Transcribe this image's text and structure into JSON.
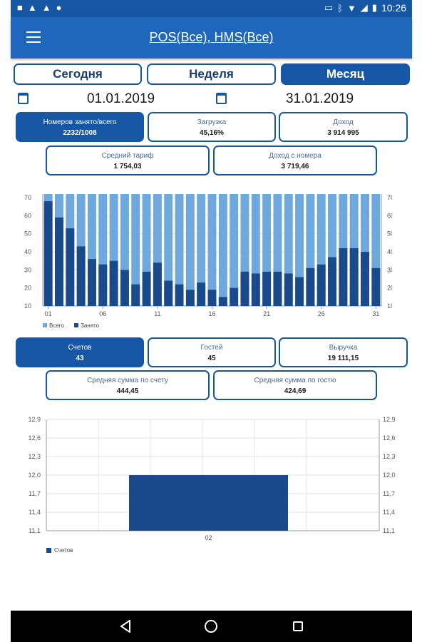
{
  "status_bar": {
    "time": "10:26"
  },
  "app_bar": {
    "title": "POS(Все), HMS(Все)"
  },
  "periods": [
    {
      "label": "Сегодня",
      "active": false
    },
    {
      "label": "Неделя",
      "active": false
    },
    {
      "label": "Месяц",
      "active": true
    }
  ],
  "dates": {
    "from": "01.01.2019",
    "to": "31.01.2019"
  },
  "hotel_stats": {
    "occupied": {
      "label": "Номеров занято/всего",
      "value": "2232/1008"
    },
    "load": {
      "label": "Загрузка",
      "value": "45,16%"
    },
    "income": {
      "label": "Доход",
      "value": "3 914 995"
    },
    "avg_rate": {
      "label": "Средний тариф",
      "value": "1 754,03"
    },
    "income_per_room": {
      "label": "Доход с номера",
      "value": "3 719,46"
    }
  },
  "pos_stats": {
    "checks": {
      "label": "Счетов",
      "value": "43"
    },
    "guests": {
      "label": "Гостей",
      "value": "45"
    },
    "revenue": {
      "label": "Выручка",
      "value": "19 111,15"
    },
    "avg_check": {
      "label": "Средняя сумма по счету",
      "value": "444,45"
    },
    "avg_guest": {
      "label": "Средняя сумма по гостю",
      "value": "424,69"
    }
  },
  "chart_data": [
    {
      "type": "bar",
      "x": [
        1,
        2,
        3,
        4,
        5,
        6,
        7,
        8,
        9,
        10,
        11,
        12,
        13,
        14,
        15,
        16,
        17,
        18,
        19,
        20,
        21,
        22,
        23,
        24,
        25,
        26,
        27,
        28,
        29,
        30,
        31
      ],
      "x_tick_labels": [
        "01",
        "06",
        "11",
        "16",
        "21",
        "26",
        "31"
      ],
      "x_tick_positions": [
        1,
        6,
        11,
        16,
        21,
        26,
        31
      ],
      "y_ticks": [
        "10",
        "20",
        "30",
        "40",
        "50",
        "60",
        "70"
      ],
      "ylim": [
        10,
        72
      ],
      "series": [
        {
          "name": "Всего",
          "color": "#6fa8dc",
          "values": [
            72,
            72,
            72,
            72,
            72,
            72,
            72,
            72,
            72,
            72,
            72,
            72,
            72,
            72,
            72,
            72,
            72,
            72,
            72,
            72,
            72,
            72,
            72,
            72,
            72,
            72,
            72,
            72,
            72,
            72,
            72
          ]
        },
        {
          "name": "Занято",
          "color": "#1a4a8c",
          "values": [
            68,
            59,
            53,
            43,
            36,
            33,
            35,
            30,
            22,
            29,
            34,
            24,
            22,
            19,
            23,
            19,
            15,
            20,
            29,
            28,
            29,
            29,
            28,
            26,
            31,
            33,
            37,
            42,
            42,
            40,
            31
          ]
        }
      ],
      "legend_position": "bottom-left",
      "grid": true
    },
    {
      "type": "bar",
      "categories": [
        "02"
      ],
      "values": [
        12.0
      ],
      "y_ticks": [
        "11,1",
        "11,4",
        "11,7",
        "12,0",
        "12,3",
        "12,6",
        "12,9"
      ],
      "ylim": [
        11.1,
        12.9
      ],
      "series": [
        {
          "name": "Счетов",
          "color": "#1a4a8c",
          "values": [
            12.0
          ]
        }
      ],
      "legend_position": "bottom-left",
      "grid": true
    }
  ]
}
